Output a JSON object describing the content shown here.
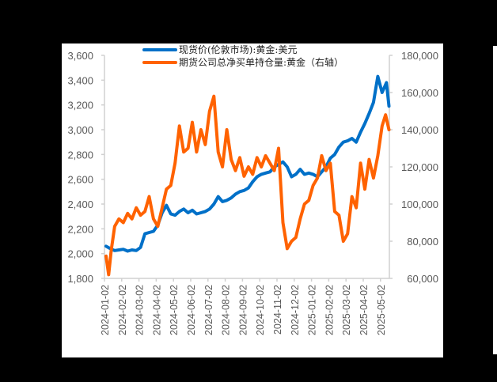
{
  "chart_data": {
    "type": "line",
    "title": "",
    "legend": {
      "position": "top",
      "entries": [
        {
          "label": "现货价(伦敦市场):黄金:美元",
          "color": "#0070C8",
          "axis": "left"
        },
        {
          "label": "期货公司总净买单持仓量:黄金（右轴）",
          "color": "#FF6200",
          "axis": "right"
        }
      ]
    },
    "x_ticks": [
      "2024-01-02",
      "2024-02-02",
      "2024-03-02",
      "2024-04-02",
      "2024-05-02",
      "2024-06-02",
      "2024-07-02",
      "2024-08-02",
      "2024-09-02",
      "2024-10-02",
      "2024-11-02",
      "2024-12-02",
      "2025-01-02",
      "2025-02-02",
      "2025-03-02",
      "2025-04-02",
      "2025-05-02"
    ],
    "y_left": {
      "ticks": [
        "1,800",
        "2,000",
        "2,200",
        "2,400",
        "2,600",
        "2,800",
        "3,000",
        "3,200",
        "3,400",
        "3,600"
      ],
      "min": 1800,
      "max": 3600
    },
    "y_right": {
      "ticks": [
        "60,000",
        "80,000",
        "100,000",
        "120,000",
        "140,000",
        "160,000",
        "180,000"
      ],
      "min": 60000,
      "max": 180000
    },
    "grid": false,
    "series": [
      {
        "name": "现货价(伦敦市场):黄金:美元",
        "axis": "left",
        "x_month_index": [
          0,
          0.25,
          0.5,
          0.75,
          1,
          1.25,
          1.5,
          1.75,
          2,
          2.25,
          2.5,
          2.75,
          3,
          3.25,
          3.5,
          3.75,
          4,
          4.25,
          4.5,
          4.75,
          5,
          5.25,
          5.5,
          5.75,
          6,
          6.25,
          6.5,
          6.75,
          7,
          7.25,
          7.5,
          7.75,
          8,
          8.25,
          8.5,
          8.75,
          9,
          9.25,
          9.5,
          9.75,
          10,
          10.25,
          10.5,
          10.75,
          11,
          11.25,
          11.5,
          11.75,
          12,
          12.25,
          12.5,
          12.75,
          13,
          13.25,
          13.5,
          13.75,
          14,
          14.25,
          14.5,
          14.75,
          15,
          15.25,
          15.5,
          15.75,
          16,
          16.25,
          16.4
        ],
        "values": [
          2060,
          2040,
          2025,
          2030,
          2035,
          2020,
          2030,
          2025,
          2050,
          2160,
          2170,
          2180,
          2230,
          2330,
          2390,
          2320,
          2310,
          2340,
          2360,
          2330,
          2350,
          2320,
          2330,
          2340,
          2360,
          2400,
          2460,
          2420,
          2430,
          2450,
          2480,
          2500,
          2510,
          2530,
          2580,
          2620,
          2640,
          2650,
          2660,
          2700,
          2720,
          2740,
          2700,
          2620,
          2640,
          2680,
          2640,
          2650,
          2640,
          2620,
          2660,
          2700,
          2770,
          2800,
          2860,
          2900,
          2910,
          2930,
          2900,
          2980,
          3050,
          3130,
          3220,
          3430,
          3300,
          3380,
          3190
        ]
      },
      {
        "name": "期货公司总净买单持仓量:黄金（右轴）",
        "axis": "right",
        "x_month_index": [
          0,
          0.15,
          0.3,
          0.5,
          0.75,
          1,
          1.25,
          1.5,
          1.75,
          2,
          2.25,
          2.5,
          2.75,
          3,
          3.25,
          3.5,
          3.75,
          4,
          4.25,
          4.5,
          4.75,
          5,
          5.25,
          5.5,
          5.75,
          6,
          6.25,
          6.5,
          6.75,
          7,
          7.25,
          7.5,
          7.75,
          8,
          8.25,
          8.5,
          8.75,
          9,
          9.25,
          9.5,
          9.75,
          10,
          10.25,
          10.5,
          10.75,
          11,
          11.25,
          11.5,
          11.75,
          12,
          12.25,
          12.5,
          12.75,
          13,
          13.25,
          13.5,
          13.75,
          14,
          14.25,
          14.5,
          14.75,
          15,
          15.25,
          15.5,
          15.75,
          16,
          16.2,
          16.4
        ],
        "values": [
          72000,
          62000,
          75000,
          88000,
          92000,
          90000,
          95000,
          92000,
          98000,
          94000,
          96000,
          104000,
          92000,
          88000,
          98000,
          108000,
          110000,
          122000,
          142000,
          128000,
          130000,
          144000,
          128000,
          140000,
          132000,
          150000,
          158000,
          128000,
          120000,
          140000,
          124000,
          118000,
          125000,
          115000,
          120000,
          116000,
          125000,
          120000,
          126000,
          122000,
          118000,
          130000,
          90000,
          76000,
          80000,
          82000,
          92000,
          100000,
          102000,
          110000,
          114000,
          126000,
          118000,
          122000,
          96000,
          94000,
          80000,
          84000,
          104000,
          98000,
          122000,
          108000,
          124000,
          114000,
          126000,
          142000,
          148000,
          140000
        ]
      }
    ]
  }
}
